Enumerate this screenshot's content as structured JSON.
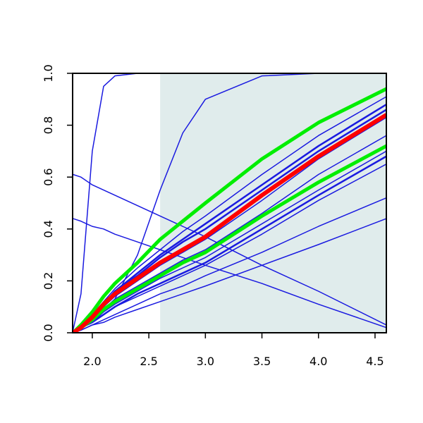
{
  "chart_data": {
    "type": "line",
    "x": [
      1.83,
      1.9,
      2.0,
      2.1,
      2.2,
      2.4,
      2.6,
      2.8,
      3.0,
      3.5,
      4.0,
      4.6
    ],
    "xlim": [
      1.826,
      4.6
    ],
    "ylim": [
      0,
      1
    ],
    "xticks": [
      {
        "value": 2,
        "label": "2.0"
      },
      2.5,
      {
        "value": 3,
        "label": "3.0"
      },
      3.5,
      {
        "value": 4,
        "label": "4.0"
      },
      4.5
    ],
    "yticks": [
      {
        "value": 0,
        "label": "0.0"
      },
      0.2,
      0.4,
      0.6,
      0.8,
      {
        "value": 1,
        "label": "1.0"
      }
    ],
    "shaded_region": {
      "xmin": 2.6,
      "xmax": 4.6,
      "color": "#e0ecec"
    },
    "series": [
      {
        "color": "#1a1ae0",
        "linewidth": 1.5,
        "values": [
          0.01,
          0.15,
          0.7,
          0.95,
          0.99,
          1,
          1,
          1,
          1,
          1,
          1,
          1
        ]
      },
      {
        "color": "#1a1ae0",
        "linewidth": 1.5,
        "values": [
          0,
          0.02,
          0.04,
          0.08,
          0.13,
          0.3,
          0.55,
          0.77,
          0.9,
          0.99,
          1,
          1
        ]
      },
      {
        "color": "#1a1ae0",
        "linewidth": 1.5,
        "values": [
          0.61,
          0.6,
          0.57,
          0.55,
          0.53,
          0.49,
          0.45,
          0.41,
          0.37,
          0.26,
          0.16,
          0.03
        ]
      },
      {
        "color": "#1a1ae0",
        "linewidth": 1.5,
        "values": [
          0.44,
          0.43,
          0.41,
          0.4,
          0.38,
          0.35,
          0.32,
          0.29,
          0.26,
          0.19,
          0.11,
          0.02
        ]
      },
      {
        "color": "#1a1ae0",
        "linewidth": 1.5,
        "values": [
          0,
          0.03,
          0.07,
          0.12,
          0.17,
          0.25,
          0.32,
          0.39,
          0.45,
          0.61,
          0.76,
          0.91
        ]
      },
      {
        "color": "#1a1ae0",
        "linewidth": 2.5,
        "values": [
          0,
          0.02,
          0.06,
          0.11,
          0.16,
          0.23,
          0.3,
          0.36,
          0.42,
          0.57,
          0.72,
          0.88
        ]
      },
      {
        "color": "#1a1ae0",
        "linewidth": 2.5,
        "values": [
          0,
          0.02,
          0.06,
          0.11,
          0.16,
          0.22,
          0.29,
          0.35,
          0.4,
          0.55,
          0.7,
          0.86
        ]
      },
      {
        "color": "#1a1ae0",
        "linewidth": 1.5,
        "values": [
          0,
          0.02,
          0.06,
          0.1,
          0.14,
          0.2,
          0.26,
          0.31,
          0.36,
          0.51,
          0.67,
          0.83
        ]
      },
      {
        "color": "#1a1ae0",
        "linewidth": 1.5,
        "values": [
          0,
          0.02,
          0.05,
          0.09,
          0.13,
          0.18,
          0.23,
          0.28,
          0.32,
          0.46,
          0.61,
          0.76
        ]
      },
      {
        "color": "#1a1ae0",
        "linewidth": 1.5,
        "values": [
          0,
          0.02,
          0.05,
          0.08,
          0.11,
          0.16,
          0.21,
          0.25,
          0.29,
          0.42,
          0.55,
          0.7
        ]
      },
      {
        "color": "#1a1ae0",
        "linewidth": 2.5,
        "values": [
          0,
          0.02,
          0.04,
          0.07,
          0.1,
          0.15,
          0.19,
          0.23,
          0.27,
          0.4,
          0.53,
          0.68
        ]
      },
      {
        "color": "#1a1ae0",
        "linewidth": 1.5,
        "values": [
          0,
          0.02,
          0.04,
          0.07,
          0.1,
          0.14,
          0.18,
          0.22,
          0.26,
          0.38,
          0.51,
          0.65
        ]
      },
      {
        "color": "#1a1ae0",
        "linewidth": 1.5,
        "values": [
          0,
          0.01,
          0.03,
          0.05,
          0.07,
          0.11,
          0.15,
          0.18,
          0.22,
          0.31,
          0.41,
          0.52
        ]
      },
      {
        "color": "#1a1ae0",
        "linewidth": 1.5,
        "values": [
          0,
          0.01,
          0.03,
          0.04,
          0.06,
          0.09,
          0.12,
          0.15,
          0.18,
          0.26,
          0.34,
          0.44
        ]
      },
      {
        "color": "#00ee00",
        "linewidth": 5,
        "values": [
          0,
          0.03,
          0.08,
          0.14,
          0.19,
          0.27,
          0.36,
          0.43,
          0.5,
          0.67,
          0.81,
          0.94
        ]
      },
      {
        "color": "#00ee00",
        "linewidth": 5,
        "values": [
          0,
          0.02,
          0.05,
          0.09,
          0.12,
          0.17,
          0.22,
          0.27,
          0.31,
          0.45,
          0.58,
          0.72
        ]
      },
      {
        "color": "#ff0000",
        "linewidth": 6,
        "values": [
          0,
          0.02,
          0.06,
          0.11,
          0.15,
          0.21,
          0.27,
          0.32,
          0.37,
          0.53,
          0.68,
          0.84
        ]
      }
    ]
  }
}
